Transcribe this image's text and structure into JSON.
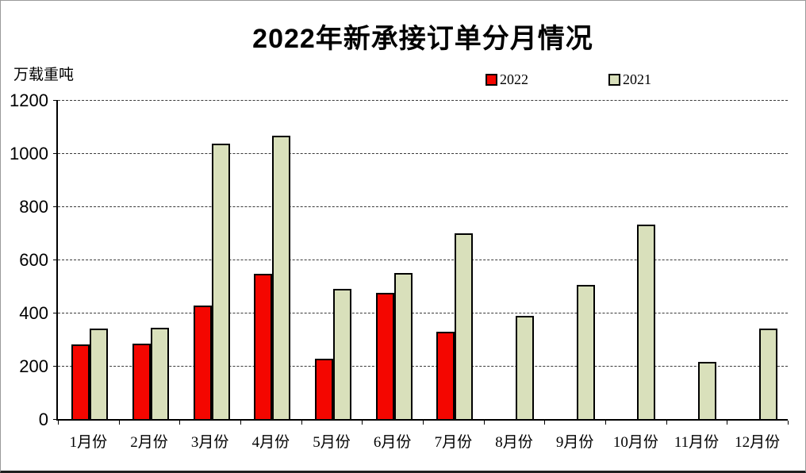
{
  "chart_data": {
    "type": "bar",
    "title": "2022年新承接订单分月情况",
    "unit_label": "万载重吨",
    "categories": [
      "1月份",
      "2月份",
      "3月份",
      "4月份",
      "5月份",
      "6月份",
      "7月份",
      "8月份",
      "9月份",
      "10月份",
      "11月份",
      "12月份"
    ],
    "series": [
      {
        "name": "2022",
        "color": "#f40600",
        "border_color": "#000000",
        "values": [
          280,
          283,
          428,
          546,
          228,
          476,
          327,
          null,
          null,
          null,
          null,
          null
        ]
      },
      {
        "name": "2021",
        "color": "#d9e0bb",
        "border_color": "#000000",
        "values": [
          340,
          342,
          1036,
          1067,
          489,
          550,
          698,
          389,
          504,
          731,
          216,
          341
        ]
      }
    ],
    "xlabel": "",
    "ylabel": "万载重吨",
    "ylim": [
      0,
      1200
    ],
    "yticks": [
      0,
      200,
      400,
      600,
      800,
      1000,
      1200
    ],
    "grid": "horizontal-dashed",
    "legend_position": "top-right",
    "gridline_color": "#3a3a3a",
    "axis_color": "#000000"
  }
}
